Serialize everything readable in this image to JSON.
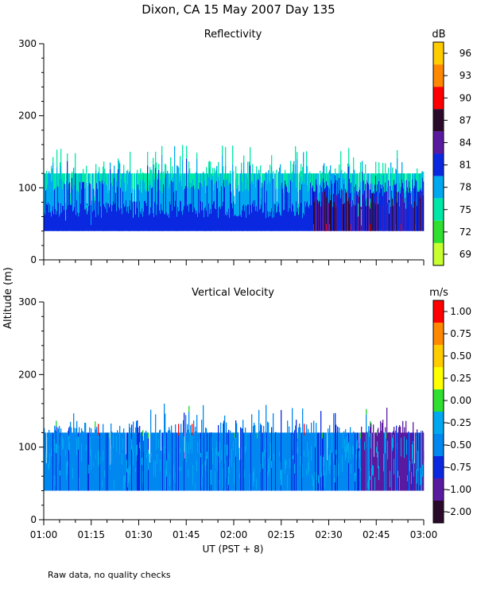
{
  "figure": {
    "title": "Dixon, CA 15 May 2007  Day 135",
    "ylabel": "Altitude (m)",
    "xlabel": "UT  (PST + 8)",
    "footnote": "Raw data, no quality checks"
  },
  "chart_data": [
    {
      "type": "heatmap",
      "title": "Reflectivity",
      "colorbar_unit": "dB",
      "xlabel": "UT  (PST + 8)",
      "ylabel": "Altitude (m)",
      "x_ticks": [
        "01:00",
        "01:15",
        "01:30",
        "01:45",
        "02:00",
        "02:15",
        "02:30",
        "02:45",
        "03:00"
      ],
      "x_range_minutes": [
        0,
        120
      ],
      "y_ticks": [
        0,
        100,
        200,
        300
      ],
      "ylim": [
        0,
        300
      ],
      "colorbar": {
        "labels": [
          "96",
          "93",
          "90",
          "87",
          "84",
          "81",
          "78",
          "75",
          "72",
          "69"
        ],
        "colors": [
          "#ffcc00",
          "#ff8800",
          "#ff0000",
          "#2a0a2a",
          "#5a1aa0",
          "#0a28e0",
          "#00a8f0",
          "#00e8a8",
          "#30e030",
          "#c8ff30"
        ]
      },
      "data_extent": {
        "base_altitude_m": 40,
        "typical_top_m": 120,
        "max_top_m": 160,
        "layers": [
          {
            "from_m": 40,
            "to_m": 65,
            "dominant_dB": 81
          },
          {
            "from_m": 65,
            "to_m": 100,
            "dominant_dB": 78
          },
          {
            "from_m": 100,
            "to_m": 120,
            "dominant_dB": 75
          }
        ],
        "note_strong_echo_after": "02:25"
      }
    },
    {
      "type": "heatmap",
      "title": "Vertical Velocity",
      "colorbar_unit": "m/s",
      "xlabel": "UT  (PST + 8)",
      "ylabel": "Altitude (m)",
      "x_ticks": [
        "01:00",
        "01:15",
        "01:30",
        "01:45",
        "02:00",
        "02:15",
        "02:30",
        "02:45",
        "03:00"
      ],
      "x_range_minutes": [
        0,
        120
      ],
      "y_ticks": [
        0,
        100,
        200,
        300
      ],
      "ylim": [
        0,
        300
      ],
      "colorbar": {
        "labels": [
          "1.00",
          "0.75",
          "0.50",
          "0.25",
          "0.00",
          "-0.25",
          "-0.50",
          "-0.75",
          "-1.00",
          "-2.00"
        ],
        "colors": [
          "#ff0000",
          "#ff8800",
          "#ffcc00",
          "#ffff00",
          "#30e030",
          "#00a8f0",
          "#0088f0",
          "#0a28e0",
          "#5a1aa0",
          "#2a0a2a"
        ]
      },
      "data_extent": {
        "base_altitude_m": 40,
        "typical_top_m": 120,
        "max_top_m": 160,
        "dominant_velocity_ms": -0.5,
        "note_downward_after": "02:37"
      }
    }
  ]
}
